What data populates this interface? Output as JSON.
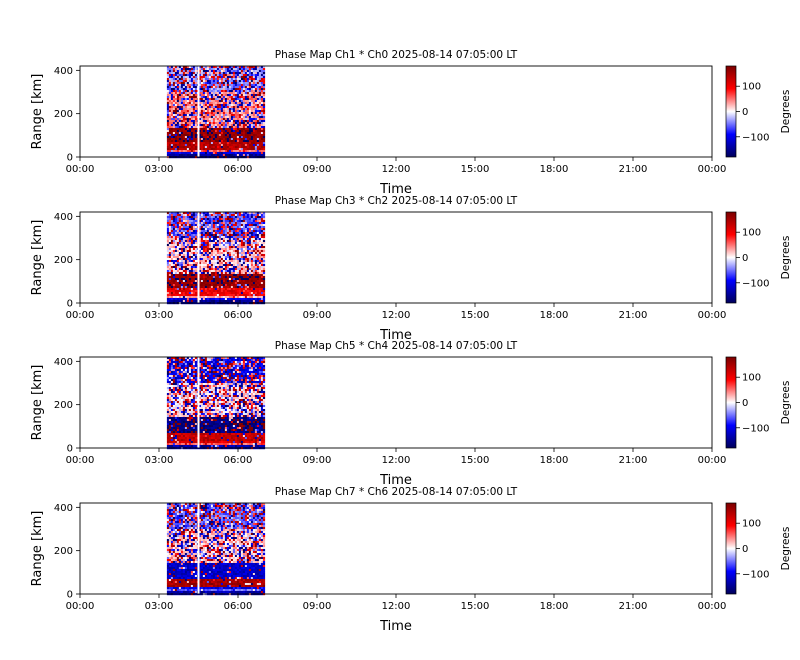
{
  "chart_data": [
    {
      "type": "heatmap",
      "title": "Phase Map Ch1 * Ch0 2025-08-14 07:05:00 LT",
      "xlabel": "Time",
      "ylabel": "Range [km]",
      "xticks": [
        "00:00",
        "03:00",
        "06:00",
        "09:00",
        "12:00",
        "15:00",
        "18:00",
        "21:00",
        "00:00"
      ],
      "xlim_hours": [
        0,
        24
      ],
      "yticks": [
        0,
        200,
        400
      ],
      "ylim": [
        0,
        420
      ],
      "colorbar_label": "Degrees",
      "colorbar_ticks": [
        100,
        0,
        -100
      ],
      "colorbar_range": [
        -180,
        180
      ],
      "data_time_span_hours": [
        3.3,
        7.0
      ],
      "gap_time_hours": 4.5,
      "colormap": [
        "#00005a",
        "#0000ff",
        "#ffffff",
        "#ff0000",
        "#7a0000"
      ],
      "bands": [
        {
          "range_km": [
            0,
            12
          ],
          "mean_deg": -150
        },
        {
          "range_km": [
            12,
            22
          ],
          "mean_deg": -110
        },
        {
          "range_km": [
            22,
            35
          ],
          "mean_deg": 60
        },
        {
          "range_km": [
            35,
            70
          ],
          "mean_deg": 140
        },
        {
          "range_km": [
            70,
            130
          ],
          "mean_deg": 165
        },
        {
          "range_km": [
            130,
            300
          ],
          "mean_deg": 40
        },
        {
          "range_km": [
            300,
            420
          ],
          "mean_deg": -40
        }
      ]
    },
    {
      "type": "heatmap",
      "title": "Phase Map Ch3 * Ch2 2025-08-14 07:05:00 LT",
      "xlabel": "Time",
      "ylabel": "Range [km]",
      "xticks": [
        "00:00",
        "03:00",
        "06:00",
        "09:00",
        "12:00",
        "15:00",
        "18:00",
        "21:00",
        "00:00"
      ],
      "xlim_hours": [
        0,
        24
      ],
      "yticks": [
        0,
        200,
        400
      ],
      "ylim": [
        0,
        420
      ],
      "colorbar_label": "Degrees",
      "colorbar_ticks": [
        100,
        0,
        -100
      ],
      "colorbar_range": [
        -180,
        180
      ],
      "data_time_span_hours": [
        3.3,
        7.0
      ],
      "gap_time_hours": 4.5,
      "colormap": [
        "#00005a",
        "#0000ff",
        "#ffffff",
        "#ff0000",
        "#7a0000"
      ],
      "bands": [
        {
          "range_km": [
            0,
            12
          ],
          "mean_deg": -150
        },
        {
          "range_km": [
            12,
            22
          ],
          "mean_deg": -110
        },
        {
          "range_km": [
            22,
            35
          ],
          "mean_deg": 30
        },
        {
          "range_km": [
            35,
            70
          ],
          "mean_deg": 100
        },
        {
          "range_km": [
            70,
            130
          ],
          "mean_deg": 165
        },
        {
          "range_km": [
            130,
            300
          ],
          "mean_deg": 20
        },
        {
          "range_km": [
            300,
            420
          ],
          "mean_deg": -60
        }
      ]
    },
    {
      "type": "heatmap",
      "title": "Phase Map Ch5 * Ch4 2025-08-14 07:05:00 LT",
      "xlabel": "Time",
      "ylabel": "Range [km]",
      "xticks": [
        "00:00",
        "03:00",
        "06:00",
        "09:00",
        "12:00",
        "15:00",
        "18:00",
        "21:00",
        "00:00"
      ],
      "xlim_hours": [
        0,
        24
      ],
      "yticks": [
        0,
        200,
        400
      ],
      "ylim": [
        0,
        420
      ],
      "colorbar_label": "Degrees",
      "colorbar_ticks": [
        100,
        0,
        -100
      ],
      "colorbar_range": [
        -180,
        180
      ],
      "data_time_span_hours": [
        3.3,
        7.0
      ],
      "gap_time_hours": 4.5,
      "colormap": [
        "#00005a",
        "#0000ff",
        "#ffffff",
        "#ff0000",
        "#7a0000"
      ],
      "bands": [
        {
          "range_km": [
            0,
            12
          ],
          "mean_deg": -140
        },
        {
          "range_km": [
            12,
            22
          ],
          "mean_deg": 60
        },
        {
          "range_km": [
            22,
            35
          ],
          "mean_deg": 120
        },
        {
          "range_km": [
            35,
            70
          ],
          "mean_deg": 130
        },
        {
          "range_km": [
            70,
            140
          ],
          "mean_deg": -165
        },
        {
          "range_km": [
            140,
            300
          ],
          "mean_deg": 10
        },
        {
          "range_km": [
            300,
            420
          ],
          "mean_deg": -100
        }
      ]
    },
    {
      "type": "heatmap",
      "title": "Phase Map Ch7 * Ch6 2025-08-14 07:05:00 LT",
      "xlabel": "Time",
      "ylabel": "Range [km]",
      "xticks": [
        "00:00",
        "03:00",
        "06:00",
        "09:00",
        "12:00",
        "15:00",
        "18:00",
        "21:00",
        "00:00"
      ],
      "xlim_hours": [
        0,
        24
      ],
      "yticks": [
        0,
        200,
        400
      ],
      "ylim": [
        0,
        420
      ],
      "colorbar_label": "Degrees",
      "colorbar_ticks": [
        100,
        0,
        -100
      ],
      "colorbar_range": [
        -180,
        180
      ],
      "data_time_span_hours": [
        3.3,
        7.0
      ],
      "gap_time_hours": 4.5,
      "colormap": [
        "#00005a",
        "#0000ff",
        "#ffffff",
        "#ff0000",
        "#7a0000"
      ],
      "bands": [
        {
          "range_km": [
            0,
            12
          ],
          "mean_deg": -130
        },
        {
          "range_km": [
            12,
            22
          ],
          "mean_deg": -60
        },
        {
          "range_km": [
            22,
            35
          ],
          "mean_deg": -100
        },
        {
          "range_km": [
            35,
            70
          ],
          "mean_deg": 150
        },
        {
          "range_km": [
            70,
            140
          ],
          "mean_deg": -120
        },
        {
          "range_km": [
            140,
            300
          ],
          "mean_deg": 20
        },
        {
          "range_km": [
            300,
            420
          ],
          "mean_deg": -60
        }
      ]
    }
  ]
}
